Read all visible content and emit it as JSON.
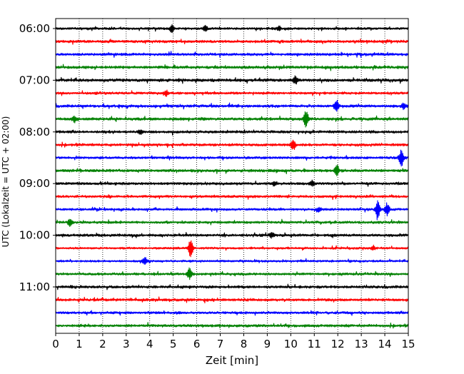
{
  "chart_data": {
    "type": "line",
    "title": "",
    "xlabel": "Zeit  [min]",
    "ylabel": "UTC (Lokalzeit = UTC + 02:00)",
    "xlim": [
      0,
      15
    ],
    "x_ticks": [
      0,
      1,
      2,
      3,
      4,
      5,
      6,
      7,
      8,
      9,
      10,
      11,
      12,
      13,
      14,
      15
    ],
    "x_tick_labels": [
      "0",
      "1",
      "2",
      "3",
      "4",
      "5",
      "6",
      "7",
      "8",
      "9",
      "10",
      "11",
      "12",
      "13",
      "14",
      "15"
    ],
    "y_tick_labels": [
      "06:00",
      "07:00",
      "08:00",
      "09:00",
      "10:00",
      "11:00"
    ],
    "y_tick_rows": [
      0,
      4,
      8,
      12,
      16,
      20
    ],
    "grid": "vertical-dotted",
    "legend": "none",
    "color_cycle": [
      "#000000",
      "#ff0000",
      "#0000ff",
      "#008000"
    ],
    "rows": [
      {
        "start": "06:00",
        "color": "#000000",
        "amp": 1.3,
        "events": [
          {
            "x": 4.95,
            "amp": 4
          },
          {
            "x": 6.35,
            "amp": 4
          },
          {
            "x": 9.5,
            "amp": 3
          }
        ]
      },
      {
        "start": "06:15",
        "color": "#ff0000",
        "amp": 1.5,
        "events": []
      },
      {
        "start": "06:30",
        "color": "#0000ff",
        "amp": 1.5,
        "events": []
      },
      {
        "start": "06:45",
        "color": "#008000",
        "amp": 1.6,
        "events": []
      },
      {
        "start": "07:00",
        "color": "#000000",
        "amp": 1.7,
        "events": [
          {
            "x": 10.2,
            "amp": 5
          }
        ]
      },
      {
        "start": "07:15",
        "color": "#ff0000",
        "amp": 1.4,
        "events": [
          {
            "x": 4.7,
            "amp": 4
          }
        ]
      },
      {
        "start": "07:30",
        "color": "#0000ff",
        "amp": 1.5,
        "events": [
          {
            "x": 11.95,
            "amp": 9
          },
          {
            "x": 14.8,
            "amp": 4
          }
        ]
      },
      {
        "start": "07:45",
        "color": "#008000",
        "amp": 1.6,
        "events": [
          {
            "x": 0.8,
            "amp": 4
          },
          {
            "x": 10.65,
            "amp": 12
          }
        ]
      },
      {
        "start": "08:00",
        "color": "#000000",
        "amp": 1.5,
        "events": [
          {
            "x": 3.6,
            "amp": 3
          }
        ]
      },
      {
        "start": "08:15",
        "color": "#ff0000",
        "amp": 1.5,
        "events": [
          {
            "x": 10.1,
            "amp": 6
          }
        ]
      },
      {
        "start": "08:30",
        "color": "#0000ff",
        "amp": 1.4,
        "events": [
          {
            "x": 14.7,
            "amp": 11
          }
        ]
      },
      {
        "start": "08:45",
        "color": "#008000",
        "amp": 1.6,
        "events": [
          {
            "x": 11.95,
            "amp": 8
          }
        ]
      },
      {
        "start": "09:00",
        "color": "#000000",
        "amp": 1.5,
        "events": [
          {
            "x": 9.3,
            "amp": 3
          },
          {
            "x": 10.9,
            "amp": 4
          }
        ]
      },
      {
        "start": "09:15",
        "color": "#ff0000",
        "amp": 1.4,
        "events": []
      },
      {
        "start": "09:30",
        "color": "#0000ff",
        "amp": 1.3,
        "events": [
          {
            "x": 13.7,
            "amp": 13
          },
          {
            "x": 14.1,
            "amp": 8
          },
          {
            "x": 11.2,
            "amp": 3
          }
        ]
      },
      {
        "start": "09:45",
        "color": "#008000",
        "amp": 1.4,
        "events": [
          {
            "x": 0.6,
            "amp": 4
          }
        ]
      },
      {
        "start": "10:00",
        "color": "#000000",
        "amp": 1.5,
        "events": [
          {
            "x": 9.2,
            "amp": 3
          }
        ]
      },
      {
        "start": "10:15",
        "color": "#ff0000",
        "amp": 1.2,
        "events": [
          {
            "x": 5.75,
            "amp": 13
          },
          {
            "x": 13.5,
            "amp": 3
          }
        ]
      },
      {
        "start": "10:30",
        "color": "#0000ff",
        "amp": 1.2,
        "events": [
          {
            "x": 3.8,
            "amp": 5
          }
        ]
      },
      {
        "start": "10:45",
        "color": "#008000",
        "amp": 1.4,
        "events": [
          {
            "x": 5.7,
            "amp": 7
          }
        ]
      },
      {
        "start": "11:00",
        "color": "#000000",
        "amp": 1.5,
        "events": []
      },
      {
        "start": "11:15",
        "color": "#ff0000",
        "amp": 1.5,
        "events": []
      },
      {
        "start": "11:30",
        "color": "#0000ff",
        "amp": 1.4,
        "events": []
      },
      {
        "start": "11:45",
        "color": "#008000",
        "amp": 1.5,
        "events": []
      }
    ]
  }
}
